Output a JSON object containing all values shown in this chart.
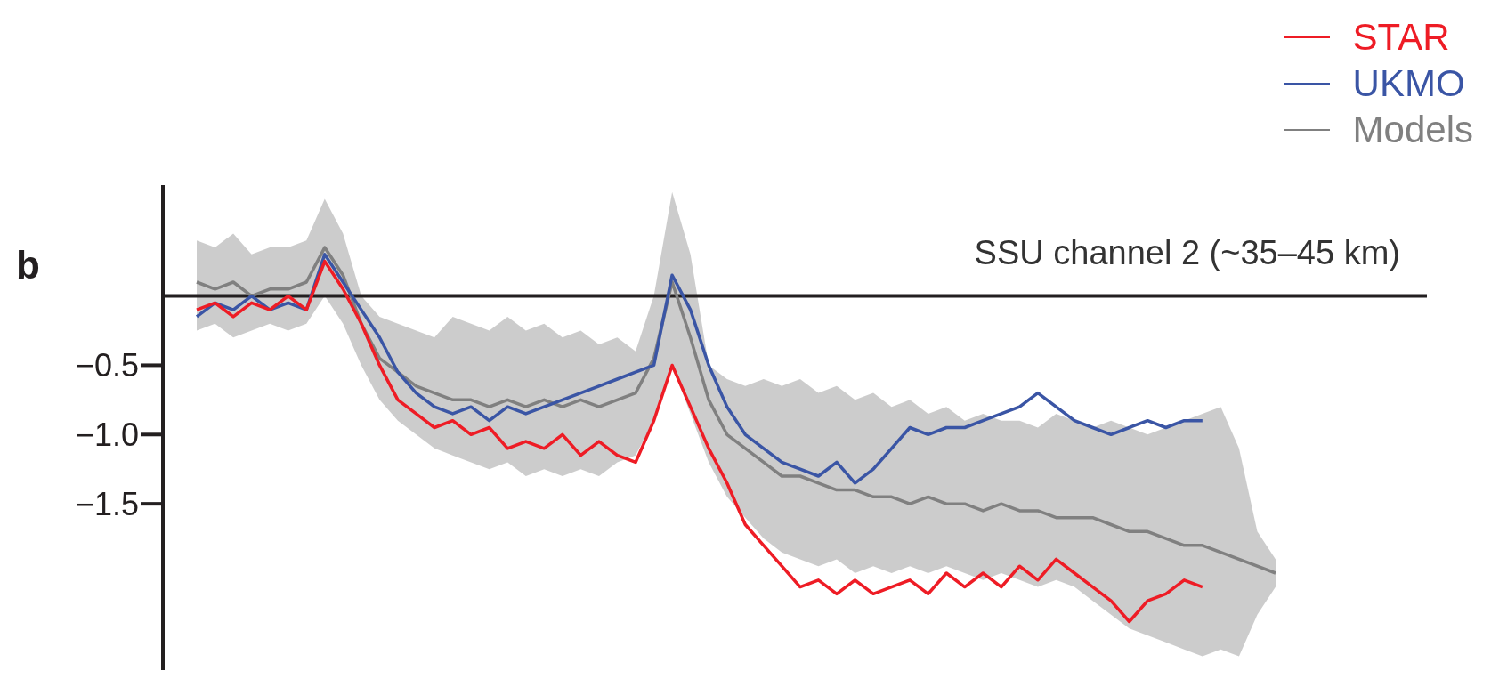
{
  "chart_data": {
    "type": "line",
    "title": "SSU channel 2 (~35–45 km)",
    "annotations": [
      "b"
    ],
    "categories": [
      null,
      null,
      null,
      null,
      null,
      null,
      null,
      null,
      null,
      null,
      null,
      null,
      null,
      null,
      null,
      null,
      null,
      null,
      null,
      null,
      null,
      null,
      null,
      null,
      null,
      null,
      null,
      null,
      null,
      null,
      null,
      null,
      null,
      null,
      null,
      null,
      null,
      null,
      null,
      null,
      null,
      null,
      null,
      null,
      null,
      null,
      null,
      null,
      null,
      null,
      null,
      null,
      null,
      null,
      null,
      null,
      null,
      null,
      null,
      null
    ],
    "series": [
      {
        "name": "Models",
        "color": "#808080",
        "values": [
          0.1,
          0.05,
          0.1,
          0.0,
          0.05,
          0.05,
          0.1,
          0.35,
          0.15,
          -0.2,
          -0.45,
          -0.55,
          -0.65,
          -0.7,
          -0.75,
          -0.75,
          -0.8,
          -0.75,
          -0.8,
          -0.75,
          -0.8,
          -0.75,
          -0.8,
          -0.75,
          -0.7,
          -0.45,
          0.1,
          -0.3,
          -0.75,
          -1.0,
          -1.1,
          -1.2,
          -1.3,
          -1.3,
          -1.35,
          -1.4,
          -1.4,
          -1.45,
          -1.45,
          -1.5,
          -1.45,
          -1.5,
          -1.5,
          -1.55,
          -1.5,
          -1.55,
          -1.55,
          -1.6,
          -1.6,
          -1.6,
          -1.65,
          -1.7,
          -1.7,
          -1.75,
          -1.8,
          -1.8,
          -1.85,
          -1.9,
          -1.95,
          -2.0
        ],
        "upper": [
          0.4,
          0.35,
          0.45,
          0.3,
          0.35,
          0.35,
          0.4,
          0.7,
          0.45,
          0.0,
          -0.15,
          -0.2,
          -0.25,
          -0.3,
          -0.15,
          -0.2,
          -0.25,
          -0.15,
          -0.25,
          -0.2,
          -0.3,
          -0.25,
          -0.35,
          -0.3,
          -0.4,
          0.0,
          0.75,
          0.3,
          -0.5,
          -0.6,
          -0.65,
          -0.6,
          -0.65,
          -0.6,
          -0.7,
          -0.65,
          -0.75,
          -0.7,
          -0.8,
          -0.75,
          -0.85,
          -0.8,
          -0.9,
          -0.85,
          -0.9,
          -0.9,
          -0.95,
          -0.85,
          -0.9,
          -0.95,
          -0.9,
          -0.95,
          -1.0,
          -0.95,
          -0.9,
          -0.85,
          -0.8,
          -1.1,
          -1.7,
          -1.9
        ],
        "lower": [
          -0.25,
          -0.2,
          -0.3,
          -0.25,
          -0.2,
          -0.25,
          -0.2,
          0.0,
          -0.2,
          -0.5,
          -0.75,
          -0.9,
          -1.0,
          -1.1,
          -1.15,
          -1.2,
          -1.25,
          -1.2,
          -1.3,
          -1.25,
          -1.3,
          -1.25,
          -1.3,
          -1.2,
          -1.15,
          -0.9,
          -0.5,
          -0.85,
          -1.2,
          -1.45,
          -1.6,
          -1.75,
          -1.85,
          -1.9,
          -1.95,
          -1.9,
          -2.0,
          -1.95,
          -2.0,
          -1.95,
          -2.0,
          -1.95,
          -2.0,
          -2.05,
          -2.0,
          -2.05,
          -2.1,
          -2.05,
          -2.1,
          -2.2,
          -2.3,
          -2.4,
          -2.45,
          -2.5,
          -2.55,
          -2.6,
          -2.55,
          -2.6,
          -2.3,
          -2.1
        ]
      },
      {
        "name": "UKMO",
        "color": "#3a55a5",
        "values": [
          -0.15,
          -0.05,
          -0.1,
          0.0,
          -0.1,
          -0.05,
          -0.1,
          0.3,
          0.1,
          -0.1,
          -0.3,
          -0.55,
          -0.7,
          -0.8,
          -0.85,
          -0.8,
          -0.9,
          -0.8,
          -0.85,
          -0.8,
          -0.75,
          -0.7,
          -0.65,
          -0.6,
          -0.55,
          -0.5,
          0.15,
          -0.1,
          -0.5,
          -0.8,
          -1.0,
          -1.1,
          -1.2,
          -1.25,
          -1.3,
          -1.2,
          -1.35,
          -1.25,
          -1.1,
          -0.95,
          -1.0,
          -0.95,
          -0.95,
          -0.9,
          -0.85,
          -0.8,
          -0.7,
          -0.8,
          -0.9,
          -0.95,
          -1.0,
          -0.95,
          -0.9,
          -0.95,
          -0.9,
          -0.9,
          null,
          null,
          null,
          null
        ]
      },
      {
        "name": "STAR",
        "color": "#ee1c25",
        "values": [
          -0.1,
          -0.05,
          -0.15,
          -0.05,
          -0.1,
          0.0,
          -0.1,
          0.25,
          0.05,
          -0.2,
          -0.5,
          -0.75,
          -0.85,
          -0.95,
          -0.9,
          -1.0,
          -0.95,
          -1.1,
          -1.05,
          -1.1,
          -1.0,
          -1.15,
          -1.05,
          -1.15,
          -1.2,
          -0.9,
          -0.5,
          -0.8,
          -1.1,
          -1.35,
          -1.65,
          -1.8,
          -1.95,
          -2.1,
          -2.05,
          -2.15,
          -2.05,
          -2.15,
          -2.1,
          -2.05,
          -2.15,
          -2.0,
          -2.1,
          -2.0,
          -2.1,
          -1.95,
          -2.05,
          -1.9,
          -2.0,
          -2.1,
          -2.2,
          -2.35,
          -2.2,
          -2.15,
          -2.05,
          -2.1,
          null,
          null,
          null,
          null
        ]
      }
    ],
    "ylim": [
      -2.7,
      0.8
    ],
    "yticks": [
      {
        "value": -0.5,
        "label": "−0.5"
      },
      {
        "value": -1.0,
        "label": "−1.0"
      },
      {
        "value": -1.5,
        "label": "−1.5"
      }
    ],
    "ref_lines": [
      {
        "axis": "y",
        "value": 0,
        "color": "#231f20"
      }
    ],
    "tick_labels": "y",
    "legend": "top right"
  }
}
